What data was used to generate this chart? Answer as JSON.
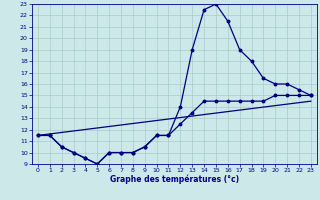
{
  "title": "Graphe des températures (°c)",
  "bg_color": "#cce8e8",
  "grid_color": "#aacccc",
  "line_color": "#000080",
  "xlim": [
    -0.5,
    23.5
  ],
  "ylim": [
    9,
    23
  ],
  "xticks": [
    0,
    1,
    2,
    3,
    4,
    5,
    6,
    7,
    8,
    9,
    10,
    11,
    12,
    13,
    14,
    15,
    16,
    17,
    18,
    19,
    20,
    21,
    22,
    23
  ],
  "yticks": [
    9,
    10,
    11,
    12,
    13,
    14,
    15,
    16,
    17,
    18,
    19,
    20,
    21,
    22,
    23
  ],
  "line1_x": [
    0,
    1,
    2,
    3,
    4,
    5,
    6,
    7,
    8,
    9,
    10,
    11,
    12,
    13,
    14,
    15,
    16,
    17,
    18,
    19,
    20,
    21,
    22,
    23
  ],
  "line1_y": [
    11.5,
    11.5,
    10.5,
    10.0,
    9.5,
    9.0,
    10.0,
    10.0,
    10.0,
    10.5,
    11.5,
    11.5,
    14.0,
    19.0,
    22.5,
    23.0,
    21.5,
    19.0,
    18.0,
    16.5,
    16.0,
    16.0,
    15.5,
    15.0
  ],
  "line2_x": [
    0,
    1,
    2,
    3,
    4,
    5,
    6,
    7,
    8,
    9,
    10,
    11,
    12,
    13,
    14,
    15,
    16,
    17,
    18,
    19,
    20,
    21,
    22,
    23
  ],
  "line2_y": [
    11.5,
    11.5,
    10.5,
    10.0,
    9.5,
    9.0,
    10.0,
    10.0,
    10.0,
    10.5,
    11.5,
    11.5,
    12.5,
    13.5,
    14.5,
    14.5,
    14.5,
    14.5,
    14.5,
    14.5,
    15.0,
    15.0,
    15.0,
    15.0
  ],
  "line3_x": [
    0,
    23
  ],
  "line3_y": [
    11.5,
    14.5
  ],
  "xlabel_fontsize": 5.5,
  "tick_fontsize": 4.5,
  "xlabel_color": "#000088",
  "tick_color": "#000088",
  "spine_color": "#000088"
}
